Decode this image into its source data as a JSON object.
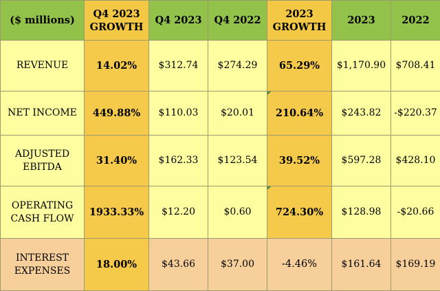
{
  "header": {
    "label": "($ millions)",
    "col1": "Q4 2023 GROWTH",
    "col2": "Q4 2023",
    "col3": "Q4 2022",
    "col4": "2023 GROWTH",
    "col5": "2023",
    "col6": "2022"
  },
  "rows": [
    {
      "label": "REVENUE",
      "q4_growth": "14.02%",
      "q4_2023": "$312.74",
      "q4_2022": "$274.29",
      "growth_2023": "65.29%",
      "y2023": "$1,170.90",
      "y2022": "$708.41"
    },
    {
      "label": "NET INCOME",
      "q4_growth": "449.88%",
      "q4_2023": "$110.03",
      "q4_2022": "$20.01",
      "growth_2023": "210.64%",
      "y2023": "$243.82",
      "y2022": "-$220.37"
    },
    {
      "label": "ADJUSTED EBITDA",
      "q4_growth": "31.40%",
      "q4_2023": "$162.33",
      "q4_2022": "$123.54",
      "growth_2023": "39.52%",
      "y2023": "$597.28",
      "y2022": "$428.10"
    },
    {
      "label": "OPERATING CASH FLOW",
      "q4_growth": "1933.33%",
      "q4_2023": "$12.20",
      "q4_2022": "$0.60",
      "growth_2023": "724.30%",
      "y2023": "$128.98",
      "y2022": "-$20.66"
    },
    {
      "label": "INTEREST EXPENSES",
      "q4_growth": "18.00%",
      "q4_2023": "$43.66",
      "q4_2022": "$37.00",
      "growth_2023": "-4.46%",
      "y2023": "$161.64",
      "y2022": "$169.19"
    }
  ],
  "colors": {
    "header_green": "#92c24a",
    "growth_gold": "#f5c94a",
    "row_yellow": "#fefea0",
    "row_peach": "#f7cf9b",
    "marker_green": "#3d8a3a"
  }
}
